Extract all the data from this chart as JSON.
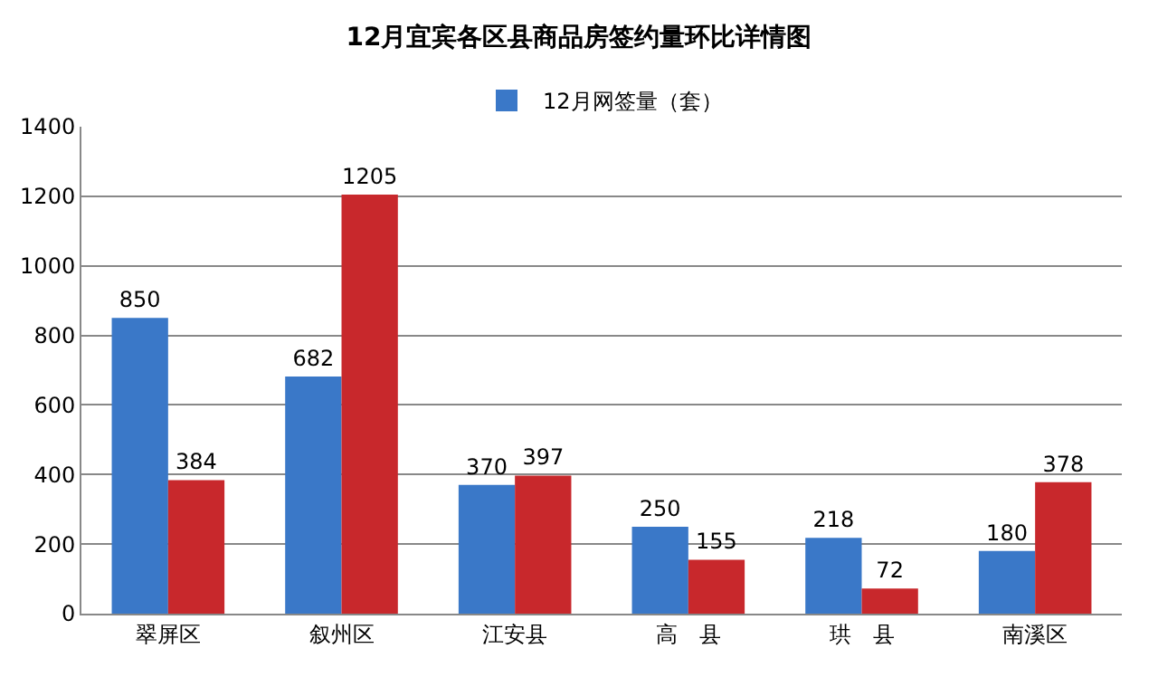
{
  "chart_data": {
    "type": "bar",
    "title": "12月宜宾各区县商品房签约量环比详情图",
    "categories": [
      "翠屏区",
      "叙州区",
      "江安县",
      "高　县",
      "珙　县",
      "南溪区"
    ],
    "series": [
      {
        "name": "12月网签量（套）",
        "color": "#3a78c8",
        "values": [
          850,
          682,
          370,
          250,
          218,
          180
        ]
      },
      {
        "color": "#c8282c",
        "values": [
          384,
          1205,
          397,
          155,
          72,
          378
        ]
      }
    ],
    "ylim": [
      0,
      1400
    ],
    "yticks": [
      0,
      200,
      400,
      600,
      800,
      1000,
      1200,
      1400
    ],
    "grid": "y",
    "legend": "top",
    "data_labels": true
  }
}
